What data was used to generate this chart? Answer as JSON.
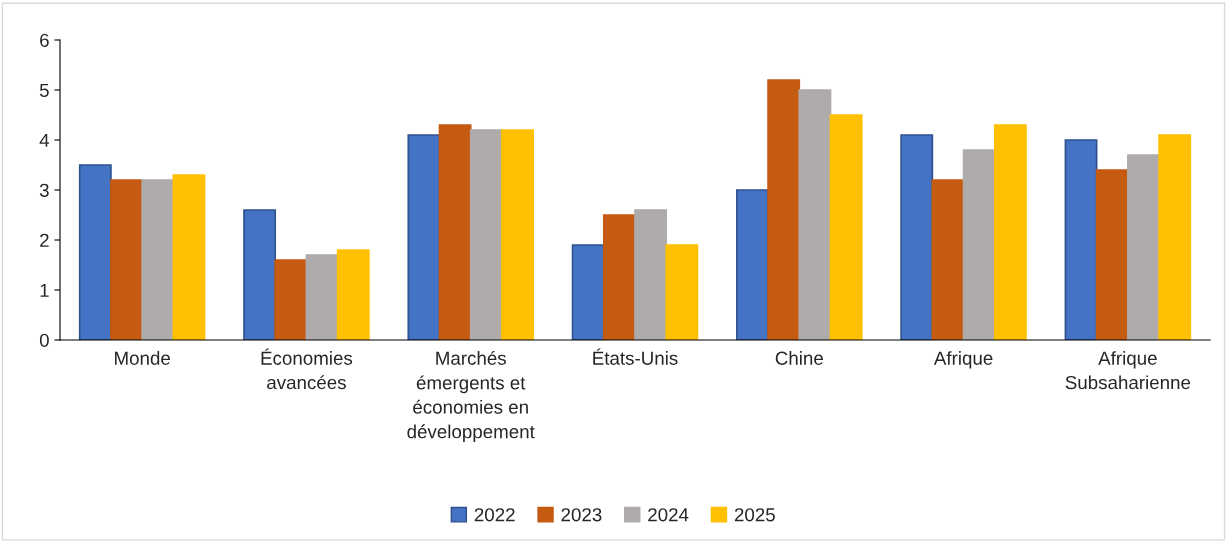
{
  "chart_data": {
    "type": "bar",
    "categories": [
      "Monde",
      "Économies\navancées",
      "Marchés\némergents et\néconomies en\ndéveloppement",
      "États-Unis",
      "Chine",
      "Afrique",
      "Afrique\nSubsaharienne"
    ],
    "series": [
      {
        "name": "2022",
        "color": "#4472c4",
        "values": [
          3.5,
          2.6,
          4.1,
          1.9,
          3.0,
          4.1,
          4.0
        ]
      },
      {
        "name": "2023",
        "color": "#c55a11",
        "values": [
          3.2,
          1.6,
          4.3,
          2.5,
          5.2,
          3.2,
          3.4
        ]
      },
      {
        "name": "2024",
        "color": "#afabab",
        "values": [
          3.2,
          1.7,
          4.2,
          2.6,
          5.0,
          3.8,
          3.7
        ]
      },
      {
        "name": "2025",
        "color": "#ffc000",
        "values": [
          3.3,
          1.8,
          4.2,
          1.9,
          4.5,
          4.3,
          4.1
        ]
      }
    ],
    "ylim": [
      0,
      6
    ],
    "yticks": [
      0,
      1,
      2,
      3,
      4,
      5,
      6
    ],
    "grid": false,
    "legend": "bottom"
  }
}
